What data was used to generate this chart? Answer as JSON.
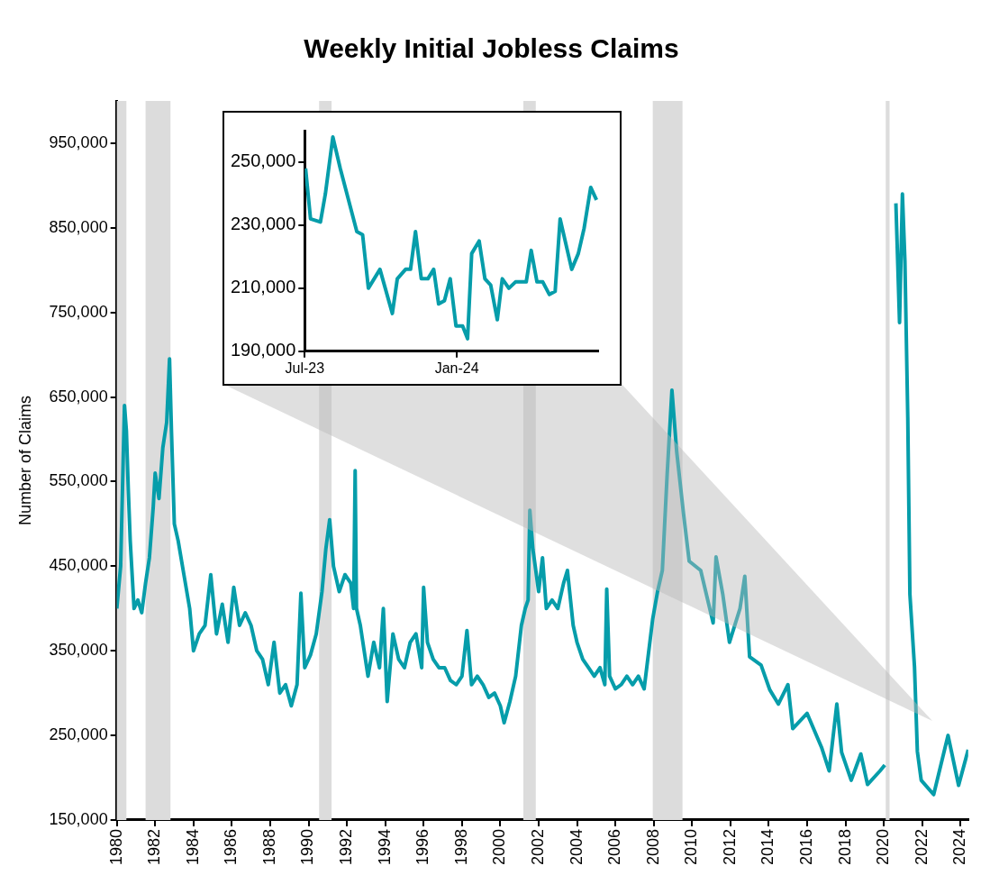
{
  "chart_data": [
    {
      "type": "line",
      "title": "Weekly Initial Jobless Claims",
      "ylabel": "Number of Claims",
      "x": [
        1980.0,
        1980.2,
        1980.4,
        1980.5,
        1980.6,
        1980.7,
        1980.9,
        1981.1,
        1981.3,
        1981.5,
        1981.7,
        1981.9,
        1982.0,
        1982.2,
        1982.4,
        1982.6,
        1982.75,
        1982.85,
        1983.0,
        1983.2,
        1983.5,
        1983.8,
        1984.0,
        1984.3,
        1984.6,
        1984.9,
        1985.2,
        1985.5,
        1985.8,
        1986.1,
        1986.4,
        1986.7,
        1987.0,
        1987.3,
        1987.6,
        1987.9,
        1988.2,
        1988.5,
        1988.8,
        1989.1,
        1989.4,
        1989.6,
        1989.8,
        1990.1,
        1990.4,
        1990.7,
        1990.9,
        1991.1,
        1991.3,
        1991.6,
        1991.9,
        1992.2,
        1992.35,
        1992.43,
        1992.5,
        1992.7,
        1992.9,
        1993.1,
        1993.4,
        1993.7,
        1993.9,
        1994.1,
        1994.4,
        1994.7,
        1995.0,
        1995.3,
        1995.6,
        1995.9,
        1996.0,
        1996.2,
        1996.5,
        1996.8,
        1997.1,
        1997.4,
        1997.7,
        1998.0,
        1998.26,
        1998.5,
        1998.8,
        1999.1,
        1999.4,
        1999.7,
        2000.0,
        2000.2,
        2000.5,
        2000.8,
        2001.1,
        2001.3,
        2001.45,
        2001.54,
        2001.7,
        2002.0,
        2002.2,
        2002.4,
        2002.7,
        2003.0,
        2003.3,
        2003.5,
        2003.8,
        2004.0,
        2004.3,
        2004.6,
        2004.9,
        2005.2,
        2005.45,
        2005.55,
        2005.7,
        2006.0,
        2006.3,
        2006.6,
        2006.9,
        2007.2,
        2007.5,
        2007.95,
        2008.2,
        2008.45,
        2008.7,
        2008.95,
        2009.2,
        2009.55,
        2009.85,
        2010.45,
        2011.1,
        2011.25,
        2011.6,
        2011.95,
        2012.5,
        2012.75,
        2013.0,
        2013.6,
        2014.05,
        2014.5,
        2015.0,
        2015.25,
        2016.0,
        2016.75,
        2017.15,
        2017.55,
        2017.8,
        2018.3,
        2018.8,
        2019.15,
        2019.8,
        2020.05,
        2020.2,
        2020.43,
        2020.63,
        2020.82,
        2020.97,
        2021.1,
        2021.25,
        2021.36,
        2021.6,
        2021.75,
        2021.95,
        2022.6,
        2023.35,
        2023.9,
        2024.4
      ],
      "series": [
        {
          "color": "#069daa",
          "values": [
            400000,
            450000,
            640000,
            610000,
            540000,
            480000,
            400000,
            410000,
            395000,
            430000,
            460000,
            520000,
            560000,
            530000,
            590000,
            620000,
            695000,
            610000,
            500000,
            480000,
            440000,
            400000,
            350000,
            370000,
            380000,
            440000,
            370000,
            405000,
            360000,
            425000,
            380000,
            395000,
            380000,
            350000,
            340000,
            310000,
            360000,
            300000,
            310000,
            285000,
            310000,
            418000,
            330000,
            345000,
            370000,
            420000,
            470000,
            505000,
            450000,
            420000,
            440000,
            430000,
            400000,
            563000,
            400000,
            380000,
            350000,
            320000,
            360000,
            330000,
            400000,
            290000,
            370000,
            340000,
            330000,
            360000,
            370000,
            330000,
            425000,
            360000,
            340000,
            330000,
            330000,
            315000,
            310000,
            320000,
            374000,
            310000,
            320000,
            310000,
            295000,
            300000,
            285000,
            265000,
            290000,
            320000,
            380000,
            400000,
            410000,
            516000,
            470000,
            420000,
            460000,
            400000,
            410000,
            400000,
            430000,
            445000,
            380000,
            360000,
            340000,
            330000,
            320000,
            330000,
            310000,
            423000,
            320000,
            305000,
            310000,
            320000,
            310000,
            320000,
            305000,
            388000,
            420000,
            445000,
            558000,
            658000,
            585000,
            513000,
            456000,
            445000,
            383000,
            461000,
            417000,
            360000,
            400000,
            438000,
            343000,
            333000,
            304000,
            287000,
            310000,
            258000,
            276000,
            236000,
            208000,
            287000,
            230000,
            197000,
            228000,
            192000,
            208000,
            215000,
            null,
            null,
            879000,
            738000,
            890000,
            811000,
            625000,
            417000,
            331000,
            231000,
            197000,
            180000,
            250000,
            191000,
            233000
          ]
        }
      ],
      "xlim": [
        1980,
        2024.4
      ],
      "xticks": [
        {
          "value": 1980,
          "label": "1980"
        },
        {
          "value": 1982,
          "label": "1982"
        },
        {
          "value": 1984,
          "label": "1984"
        },
        {
          "value": 1986,
          "label": "1986"
        },
        {
          "value": 1988,
          "label": "1988"
        },
        {
          "value": 1990,
          "label": "1990"
        },
        {
          "value": 1992,
          "label": "1992"
        },
        {
          "value": 1994,
          "label": "1994"
        },
        {
          "value": 1996,
          "label": "1996"
        },
        {
          "value": 1998,
          "label": "1998"
        },
        {
          "value": 2000,
          "label": "2000"
        },
        {
          "value": 2002,
          "label": "2002"
        },
        {
          "value": 2004,
          "label": "2004"
        },
        {
          "value": 2006,
          "label": "2006"
        },
        {
          "value": 2008,
          "label": "2008"
        },
        {
          "value": 2010,
          "label": "2010"
        },
        {
          "value": 2012,
          "label": "2012"
        },
        {
          "value": 2014,
          "label": "2014"
        },
        {
          "value": 2016,
          "label": "2016"
        },
        {
          "value": 2018,
          "label": "2018"
        },
        {
          "value": 2020,
          "label": "2020"
        },
        {
          "value": 2022,
          "label": "2022"
        },
        {
          "value": 2024,
          "label": "2024"
        }
      ],
      "ylim": [
        150000,
        1000000
      ],
      "yticks": [
        {
          "value": 150000,
          "label": "150,000"
        },
        {
          "value": 250000,
          "label": "250,000"
        },
        {
          "value": 350000,
          "label": "350,000"
        },
        {
          "value": 450000,
          "label": "450,000"
        },
        {
          "value": 550000,
          "label": "550,000"
        },
        {
          "value": 650000,
          "label": "650,000"
        },
        {
          "value": 750000,
          "label": "750,000"
        },
        {
          "value": 850000,
          "label": "850,000"
        },
        {
          "value": 950000,
          "label": "950,000"
        }
      ],
      "bands": [
        {
          "axis": "x",
          "from": 1980.0,
          "to": 1980.5,
          "color": "#dcdcdc"
        },
        {
          "axis": "x",
          "from": 1981.5,
          "to": 1982.8,
          "color": "#dcdcdc"
        },
        {
          "axis": "x",
          "from": 1990.55,
          "to": 1991.2,
          "color": "#dcdcdc"
        },
        {
          "axis": "x",
          "from": 2001.2,
          "to": 2001.85,
          "color": "#dcdcdc"
        },
        {
          "axis": "x",
          "from": 2007.95,
          "to": 2009.5,
          "color": "#dcdcdc"
        },
        {
          "axis": "x",
          "from": 2020.1,
          "to": 2020.3,
          "color": "#dcdcdc"
        }
      ]
    },
    {
      "type": "line",
      "x": [
        "2023-07-02",
        "2023-07-08",
        "2023-07-20",
        "2023-07-26",
        "2023-08-04",
        "2023-08-13",
        "2023-09-02",
        "2023-09-09",
        "2023-09-16",
        "2023-09-30",
        "2023-10-15",
        "2023-10-21",
        "2023-10-31",
        "2023-11-06",
        "2023-11-12",
        "2023-11-19",
        "2023-11-27",
        "2023-12-04",
        "2023-12-10",
        "2023-12-17",
        "2023-12-24",
        "2023-12-31",
        "2024-01-08",
        "2024-01-14",
        "2024-01-19",
        "2024-01-28",
        "2024-02-04",
        "2024-02-11",
        "2024-02-19",
        "2024-02-25",
        "2024-03-04",
        "2024-03-12",
        "2024-03-25",
        "2024-03-31",
        "2024-04-07",
        "2024-04-14",
        "2024-04-22",
        "2024-04-29",
        "2024-05-05",
        "2024-05-19",
        "2024-05-27",
        "2024-06-03",
        "2024-06-11",
        "2024-06-18"
      ],
      "series": [
        {
          "color": "#069daa",
          "values": [
            248000,
            232000,
            231000,
            240000,
            258000,
            248000,
            228000,
            227000,
            210000,
            216000,
            202000,
            213000,
            216000,
            216000,
            228000,
            213000,
            213000,
            216000,
            205000,
            206000,
            213000,
            198000,
            198000,
            194000,
            221000,
            225000,
            213000,
            211000,
            200000,
            213000,
            210000,
            212000,
            212000,
            222000,
            212000,
            212000,
            208000,
            209000,
            232000,
            216000,
            221000,
            229000,
            242000,
            238000
          ]
        }
      ],
      "xlim": [
        "2023-07-01",
        "2024-06-20"
      ],
      "xticks": [
        {
          "value": "2023-07-01",
          "label": "Jul-23"
        },
        {
          "value": "2024-01-01",
          "label": "Jan-24"
        }
      ],
      "ylim": [
        190000,
        260000
      ],
      "yticks": [
        {
          "value": 190000,
          "label": "190,000"
        },
        {
          "value": 210000,
          "label": "210,000"
        },
        {
          "value": 230000,
          "label": "230,000"
        },
        {
          "value": 250000,
          "label": "250,000"
        }
      ]
    }
  ]
}
